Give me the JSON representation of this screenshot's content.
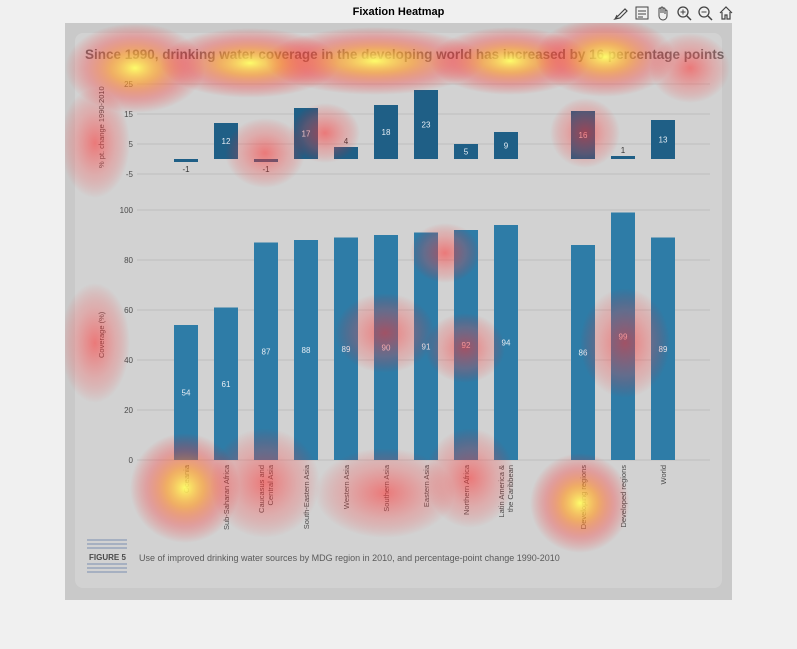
{
  "window": {
    "title": "Fixation Heatmap"
  },
  "toolbar": {
    "tools": [
      {
        "name": "brush-icon"
      },
      {
        "name": "data-tips-icon"
      },
      {
        "name": "pan-hand-icon"
      },
      {
        "name": "zoom-in-icon"
      },
      {
        "name": "zoom-out-icon"
      },
      {
        "name": "home-icon"
      }
    ]
  },
  "colors": {
    "bar": "#2e7ca7",
    "bar_dark": "#1f5f86",
    "panel": "#cfcfcf",
    "text": "#4a4a4a"
  },
  "chart_data": {
    "type": "bar",
    "title": "Since 1990, drinking water coverage in the developing world has increased by 16 percentage points",
    "categories": [
      "Oceania",
      "Sub-Saharan Africa",
      "Caucasus and Central Asia",
      "South-Eastern Asia",
      "Western Asia",
      "Southern Asia",
      "Eastern Asia",
      "Northern Africa",
      "Latin America & the Caribbean",
      "Developing regions",
      "Developed regions",
      "World"
    ],
    "category_labels": [
      [
        "Oceania"
      ],
      [
        "Sub-Saharan Africa"
      ],
      [
        "Caucasus and",
        "Central Asia"
      ],
      [
        "South-Eastern Asia"
      ],
      [
        "Western Asia"
      ],
      [
        "Southern Asia"
      ],
      [
        "Eastern Asia"
      ],
      [
        "Northern Africa"
      ],
      [
        "Latin America &",
        "the Caribbean"
      ],
      [
        "Developing regions"
      ],
      [
        "Developed regions"
      ],
      [
        "World"
      ]
    ],
    "series": [
      {
        "name": "Coverage (%)",
        "values": [
          54,
          61,
          87,
          88,
          89,
          90,
          91,
          92,
          94,
          86,
          99,
          89
        ]
      },
      {
        "name": "% pt. change 1990-2010",
        "values": [
          -1,
          12,
          -1,
          17,
          4,
          18,
          23,
          5,
          9,
          16,
          1,
          13
        ]
      }
    ],
    "coverage_axis": {
      "label": "Coverage (%)",
      "ylim": [
        0,
        100
      ],
      "ticks": [
        "0",
        "20",
        "40",
        "60",
        "80",
        "100"
      ]
    },
    "change_axis": {
      "label": "% pt. change 1990-2010",
      "ylim": [
        -5,
        25
      ],
      "ticks": [
        "-5",
        "5",
        "15",
        "25"
      ]
    },
    "caption_label": "FIGURE 5",
    "caption": "Use of improved drinking water sources by MDG region in 2010, and percentage-point change 1990-2010",
    "grid": true,
    "heatmap_overlay": true
  }
}
